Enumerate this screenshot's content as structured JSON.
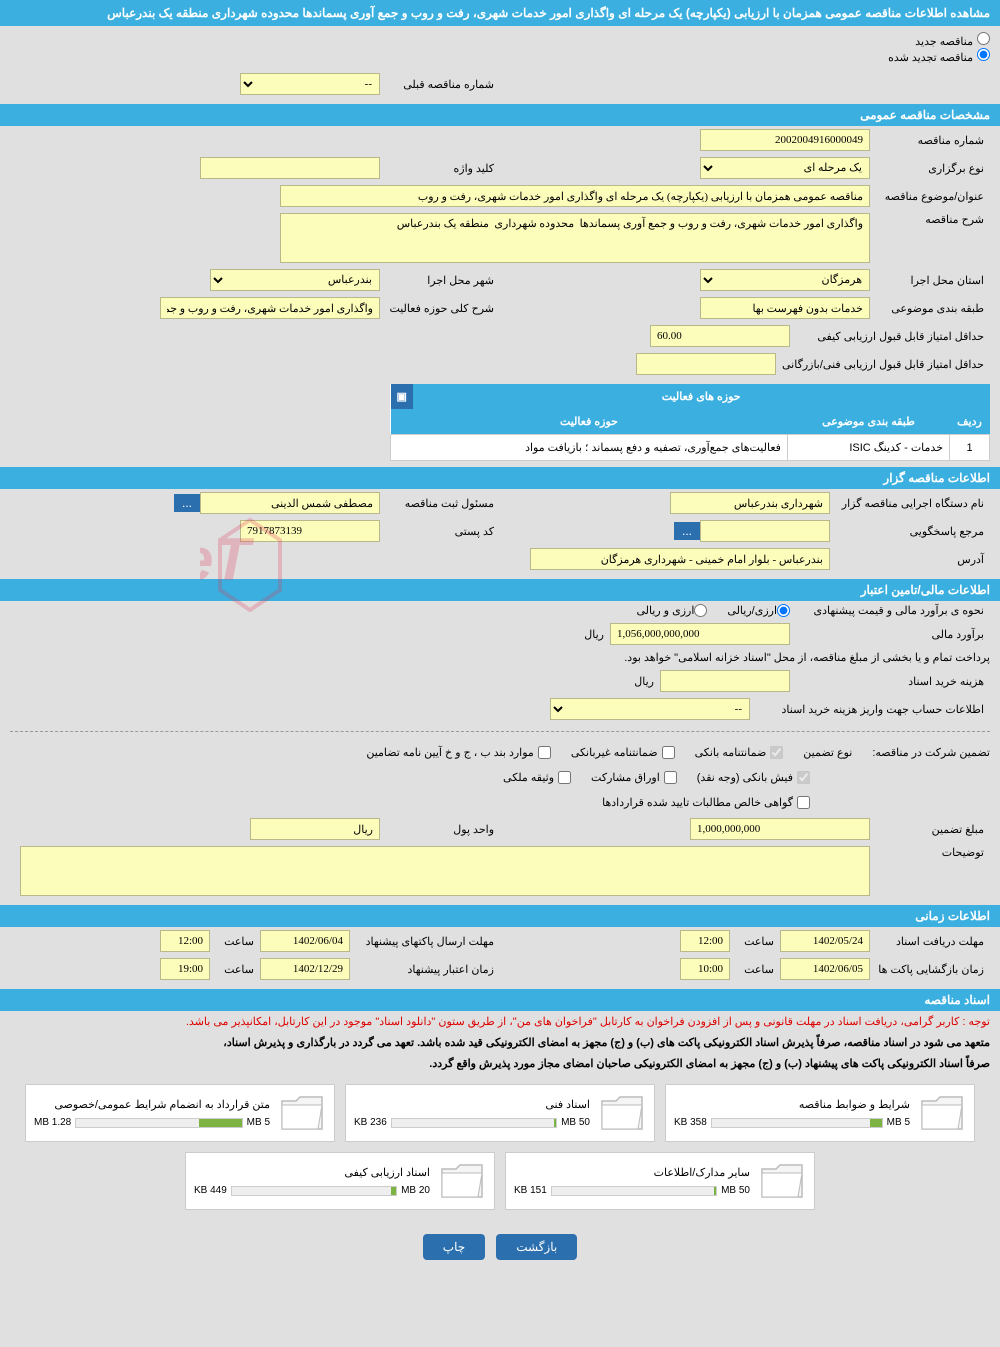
{
  "header": {
    "title": "مشاهده اطلاعات مناقصه عمومی همزمان با ارزیابی (یکپارچه) یک مرحله ای واگذاری امور خدمات شهری، رفت و روب و جمع آوری پسماندها محدوده شهرداری منطقه یک بندرعباس"
  },
  "radio": {
    "new_label": "مناقصه جدید",
    "renew_label": "مناقصه تجدید شده",
    "prev_number_label": "شماره مناقصه قبلی",
    "prev_number_value": "--"
  },
  "specs": {
    "section_title": "مشخصات مناقصه عمومی",
    "number_label": "شماره مناقصه",
    "number_value": "2002004916000049",
    "holding_type_label": "نوع برگزاری",
    "holding_type_value": "یک مرحله ای",
    "keyword_label": "کلید واژه",
    "keyword_value": "",
    "subject_label": "عنوان/موضوع مناقصه",
    "subject_value": "مناقصه عمومی همزمان با ارزیابی (یکپارچه) یک مرحله ای واگذاری امور خدمات شهری، رفت و روب",
    "desc_label": "شرح مناقصه",
    "desc_value": "واگذاری امور خدمات شهری، رفت و روب و جمع آوری پسماندها  محدوده شهرداری  منطقه یک بندرعباس",
    "province_label": "استان محل اجرا",
    "province_value": "هرمزگان",
    "city_label": "شهر محل اجرا",
    "city_value": "بندرعباس",
    "subject_class_label": "طبقه بندی موضوعی",
    "subject_class_value": "خدمات بدون فهرست بها",
    "activity_scope_label": "شرح کلی حوزه فعالیت",
    "activity_scope_value": "واگذاری امور خدمات شهری، رفت و روب و جمع آوری",
    "min_quality_label": "حداقل امتیاز قابل قبول ارزیابی کیفی",
    "min_quality_value": "60.00",
    "min_tech_label": "حداقل امتیاز قابل قبول ارزیابی فنی/بازرگانی",
    "min_tech_value": ""
  },
  "activity_table": {
    "title": "حوزه های فعالیت",
    "col_row": "ردیف",
    "col_class": "طبقه بندی موضوعی",
    "col_scope": "حوزه فعالیت",
    "rows": [
      {
        "idx": "1",
        "cls": "خدمات - کدینگ ISIC",
        "scope": "فعالیت‌های جمع‌آوری، تصفیه و دفع پسماند ؛ بازیافت مواد"
      }
    ]
  },
  "tenderer": {
    "section_title": "اطلاعات مناقصه گزار",
    "org_label": "نام دستگاه اجرایی مناقصه گزار",
    "org_value": "شهرداری بندرعباس",
    "reg_label": "مسئول ثبت مناقصه",
    "reg_value": "مصطفی شمس الدینی",
    "response_label": "مرجع پاسخگویی",
    "response_value": "",
    "postal_label": "کد پستی",
    "postal_value": "7917873139",
    "address_label": "آدرس",
    "address_value": "بندرعباس - بلوار امام خمینی - شهرداری هرمزگان"
  },
  "financial": {
    "section_title": "اطلاعات مالی/تامین اعتبار",
    "method_label": "نحوه ی برآورد مالی و قیمت پیشنهادی",
    "method_opt1": "ارزی/ریالی",
    "method_opt2": "ارزی و ریالی",
    "estimate_label": "برآورد مالی",
    "estimate_value": "1,056,000,000,000",
    "estimate_unit": "ریال",
    "payment_note": "پرداخت تمام و یا بخشی از مبلغ مناقصه، از محل \"اسناد خزانه اسلامی\" خواهد بود.",
    "doc_cost_label": "هزینه خرید اسناد",
    "doc_cost_value": "",
    "doc_cost_unit": "ریال",
    "account_label": "اطلاعات حساب جهت واریز هزینه خرید اسناد",
    "account_value": "--"
  },
  "guarantee": {
    "prefix": "تضمین شرکت در مناقصه:",
    "type_label": "نوع تضمین",
    "opt_bank": "ضمانتنامه بانکی",
    "opt_nonbank": "ضمانتنامه غیربانکی",
    "opt_cases": "موارد بند ب ، ج و خ آیین نامه تضامین",
    "opt_cash": "فیش بانکی (وجه نقد)",
    "opt_bonds": "اوراق مشارکت",
    "opt_property": "وثیقه ملکی",
    "opt_cert": "گواهی خالص مطالبات تایید شده قراردادها",
    "amount_label": "مبلغ تضمین",
    "amount_value": "1,000,000,000",
    "unit_label": "واحد پول",
    "unit_value": "ریال",
    "notes_label": "توضیحات",
    "notes_value": ""
  },
  "timing": {
    "section_title": "اطلاعات زمانی",
    "receive_label": "مهلت دریافت اسناد",
    "receive_date": "1402/05/24",
    "receive_time_label": "ساعت",
    "receive_time": "12:00",
    "send_label": "مهلت ارسال پاکتهای پیشنهاد",
    "send_date": "1402/06/04",
    "send_time_label": "ساعت",
    "send_time": "12:00",
    "open_label": "زمان بازگشایی پاکت ها",
    "open_date": "1402/06/05",
    "open_time_label": "ساعت",
    "open_time": "10:00",
    "validity_label": "زمان اعتبار پیشنهاد",
    "validity_date": "1402/12/29",
    "validity_time_label": "ساعت",
    "validity_time": "19:00"
  },
  "documents": {
    "section_title": "اسناد مناقصه",
    "attention": "توجه : کاربر گرامی، دریافت اسناد در مهلت قانونی و پس از افزودن فراخوان به کارتابل \"فراخوان های من\"، از طریق ستون \"دانلود اسناد\" موجود در این کارتابل، امکانپذیر می باشد.",
    "note1": "متعهد می شود در اسناد مناقصه، صرفاً پذیرش اسناد الکترونیکی پاکت های (ب) و (ج) مجهز به امضای الکترونیکی قید شده باشد. تعهد می گردد در بارگذاری و پذیرش اسناد،",
    "note2": "صرفاً اسناد الکترونیکی پاکت های پیشنهاد (ب) و (ج) مجهز به امضای الکترونیکی صاحبان امضای مجاز مورد پذیرش واقع گردد.",
    "files": [
      {
        "title": "شرایط و ضوابط مناقصه",
        "used": "358 KB",
        "total": "5 MB",
        "pct": 7
      },
      {
        "title": "اسناد فنی",
        "used": "236 KB",
        "total": "50 MB",
        "pct": 1
      },
      {
        "title": "متن قرارداد به انضمام شرایط عمومی/خصوصی",
        "used": "1.28 MB",
        "total": "5 MB",
        "pct": 26
      },
      {
        "title": "سایر مدارک/اطلاعات",
        "used": "151 KB",
        "total": "50 MB",
        "pct": 1
      },
      {
        "title": "اسناد ارزیابی کیفی",
        "used": "449 KB",
        "total": "20 MB",
        "pct": 3
      }
    ]
  },
  "buttons": {
    "back": "بازگشت",
    "print": "چاپ"
  },
  "colors": {
    "header": "#3bb0e0",
    "yellow": "#fdfdbb",
    "button": "#2b6fae",
    "bg": "#e0e0e0"
  }
}
